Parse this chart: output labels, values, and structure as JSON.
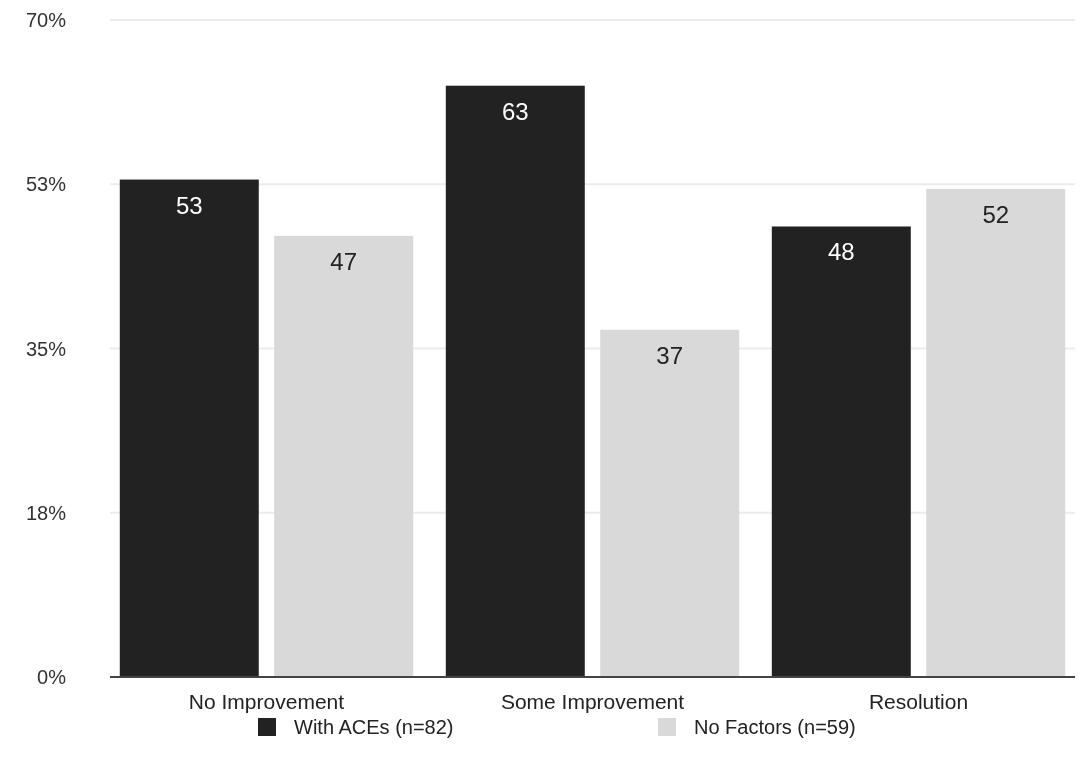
{
  "chart_data": {
    "type": "bar",
    "categories": [
      "No Improvement",
      "Some Improvement",
      "Resolution"
    ],
    "series": [
      {
        "name": "With ACEs (n=82)",
        "color": "#222222",
        "values": [
          53,
          63,
          48
        ]
      },
      {
        "name": "No Factors (n=59)",
        "color": "#d9d9d9",
        "values": [
          47,
          37,
          52
        ]
      }
    ],
    "ylim": [
      0,
      70
    ],
    "yticks": [
      {
        "value": 0,
        "label": "0%"
      },
      {
        "value": 17.5,
        "label": "18%"
      },
      {
        "value": 35,
        "label": "35%"
      },
      {
        "value": 52.5,
        "label": "53%"
      },
      {
        "value": 70,
        "label": "70%"
      }
    ],
    "grid": "y",
    "legend": "bottom",
    "data_labels": true
  }
}
